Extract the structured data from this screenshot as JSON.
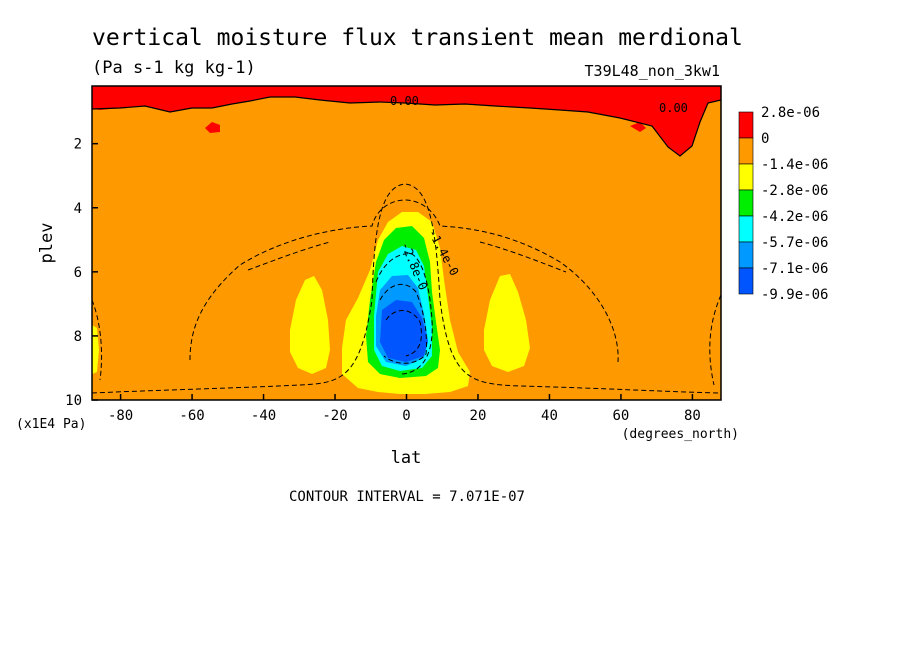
{
  "chart_data": {
    "type": "heatmap",
    "title": "vertical moisture flux transient mean merdional",
    "subtitle": "(Pa s-1 kg kg-1)",
    "dataset": "T39L48_non_3kw1",
    "xlabel": "lat",
    "x_units": "(degrees_north)",
    "ylabel": "plev",
    "y_units": "(x1E4 Pa)",
    "xlim": [
      -88,
      88
    ],
    "ylim": [
      0.2,
      10
    ],
    "y_inverted": true,
    "x_ticks": [
      "-80",
      "-60",
      "-40",
      "-20",
      "0",
      "20",
      "40",
      "60",
      "80"
    ],
    "x_tick_values": [
      -80,
      -60,
      -40,
      -20,
      0,
      20,
      40,
      60,
      80
    ],
    "y_ticks": [
      "2",
      "4",
      "6",
      "8",
      "10"
    ],
    "y_tick_values": [
      2,
      4,
      6,
      8,
      10
    ],
    "contour_interval_label": "CONTOUR INTERVAL = 7.071E-07",
    "contour_labels": [
      "0.00",
      "0.00",
      "-1.4e-0",
      "-2.8e-0"
    ],
    "colorbar": {
      "labels": [
        "2.8e-06",
        "0",
        "-1.4e-06",
        "-2.8e-06",
        "-4.2e-06",
        "-5.7e-06",
        "-7.1e-06",
        "-9.9e-06"
      ],
      "colors": [
        "#ff0000",
        "#ff9900",
        "#ffff00",
        "#00ee00",
        "#00ffff",
        "#0099ff",
        "#0055ff"
      ]
    },
    "levels_hex": {
      "positive": "#ff0000",
      "zero_to_neg1_4e-06": "#ff9900",
      "neg1_4e-06_to_neg2_8e-06": "#ffff00",
      "neg2_8e-06_to_neg4_2e-06": "#00ee00",
      "neg4_2e-06_to_neg5_7e-06": "#00ffff",
      "neg5_7e-06_to_neg7_1e-06": "#0099ff",
      "below_neg7_1e-06": "#0055ff"
    },
    "features": [
      {
        "name": "equatorial minimum",
        "lat": 0,
        "plev": 8.0,
        "value": -9.5e-06
      },
      {
        "name": "subtropical minimum south",
        "lat": -28,
        "plev": 7.8,
        "value": -2e-06
      },
      {
        "name": "subtropical minimum north",
        "lat": 28,
        "plev": 7.8,
        "value": -2e-06
      },
      {
        "name": "positive region north polar",
        "lat": 78,
        "plev": 1.2,
        "value": 1e-06
      }
    ]
  }
}
